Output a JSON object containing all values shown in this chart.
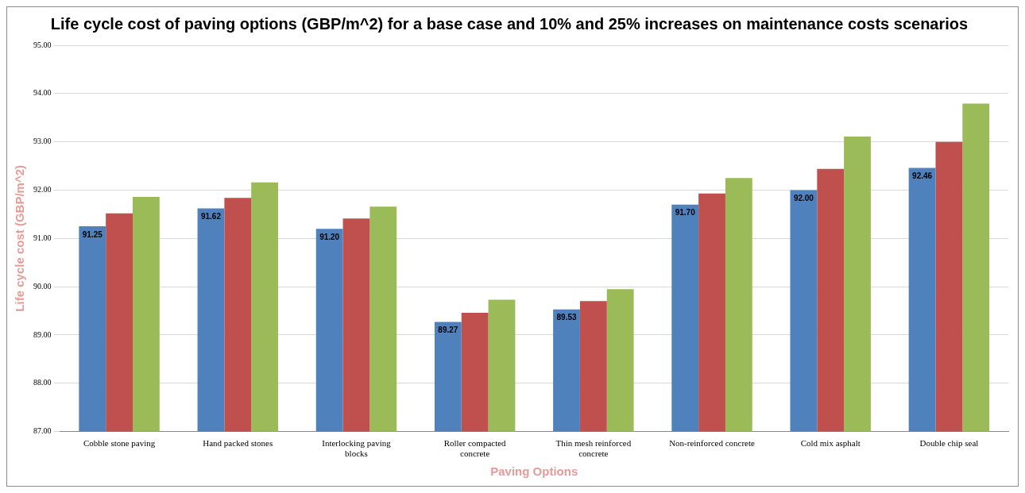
{
  "chart_data": {
    "type": "bar",
    "title": "Life cycle cost of paving options (GBP/m^2) for a base case and 10% and 25% increases on maintenance costs scenarios",
    "xlabel": "Paving Options",
    "ylabel": "Life cycle cost (GBP/m^2)",
    "categories": [
      "Cobble stone paving",
      "Hand packed stones",
      "Interlocking paving blocks",
      "Roller compacted concrete",
      "Thin mesh reinforced concrete",
      "Non-reinforced concrete",
      "Cold mix asphalt",
      "Double chip seal"
    ],
    "series": [
      {
        "color": "#4f81bd",
        "values": [
          91.25,
          91.62,
          91.2,
          89.27,
          89.53,
          91.7,
          92.0,
          92.46
        ],
        "value_labels": [
          "91.25",
          "91.62",
          "91.20",
          "89.27",
          "89.53",
          "91.70",
          "92.00",
          "92.46"
        ]
      },
      {
        "color": "#c0504d",
        "values": [
          91.52,
          91.84,
          91.41,
          89.46,
          89.7,
          91.93,
          92.44,
          93.0
        ]
      },
      {
        "color": "#9bbb59",
        "values": [
          91.86,
          92.16,
          91.66,
          89.73,
          89.95,
          92.25,
          93.11,
          93.79
        ]
      }
    ],
    "ylim": [
      87,
      95
    ],
    "yticks": [
      {
        "value": 87,
        "label": "87.00"
      },
      {
        "value": 88,
        "label": "88.00"
      },
      {
        "value": 89,
        "label": "89.00"
      },
      {
        "value": 90,
        "label": "90.00"
      },
      {
        "value": 91,
        "label": "91.00"
      },
      {
        "value": 92,
        "label": "92.00"
      },
      {
        "value": 93,
        "label": "93.00"
      },
      {
        "value": 94,
        "label": "94.00"
      },
      {
        "value": 95,
        "label": "95.00"
      }
    ],
    "grid": "y",
    "legend": false
  }
}
